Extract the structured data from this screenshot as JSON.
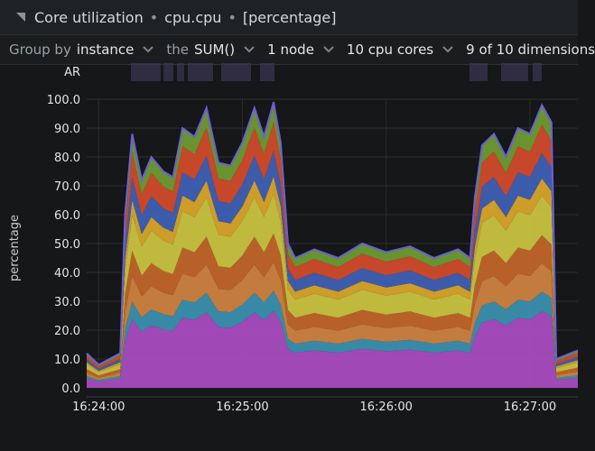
{
  "title": {
    "name": "Core utilization",
    "context": "cpu.cpu",
    "units": "[percentage]"
  },
  "toolbar": {
    "group_by_prefix": "Group by",
    "group_by_value": "instance",
    "agg_prefix": "the",
    "agg_value": "SUM()",
    "nodes": "1 node",
    "instances": "10 cpu cores",
    "dimensions": "9 of 10 dimensions"
  },
  "colors": {
    "background": "#151718",
    "grid": "#2a2e30",
    "layers": [
      "#a94bc0",
      "#3a8fae",
      "#ce8140",
      "#c0652a",
      "#c8c23f",
      "#d7a32a",
      "#3f5fb3",
      "#d04a2a",
      "#6b9a32"
    ],
    "top_edge": "#6a5fd8",
    "anomaly_bar": "#3a3650"
  },
  "chart_data": {
    "type": "area",
    "stacked": true,
    "ylabel": "percentage",
    "ylim": [
      0,
      100
    ],
    "yticks": [
      "100.0",
      "90.0",
      "80.0",
      "70.0",
      "60.0",
      "50.0",
      "40.0",
      "30.0",
      "20.0",
      "10.0",
      "0.0"
    ],
    "anomaly_row_label": "AR",
    "xlim": [
      "16:23:55",
      "16:27:20"
    ],
    "xticks": [
      "16:24:00",
      "16:25:00",
      "16:26:00",
      "16:27:00"
    ],
    "totals": [
      {
        "t": "16:23:55",
        "v": 12
      },
      {
        "t": "16:24:00",
        "v": 8
      },
      {
        "t": "16:24:09",
        "v": 12
      },
      {
        "t": "16:24:11",
        "v": 60
      },
      {
        "t": "16:24:14",
        "v": 88
      },
      {
        "t": "16:24:18",
        "v": 72
      },
      {
        "t": "16:24:22",
        "v": 80
      },
      {
        "t": "16:24:27",
        "v": 75
      },
      {
        "t": "16:24:31",
        "v": 73
      },
      {
        "t": "16:24:35",
        "v": 90
      },
      {
        "t": "16:24:40",
        "v": 87
      },
      {
        "t": "16:24:45",
        "v": 97
      },
      {
        "t": "16:24:50",
        "v": 78
      },
      {
        "t": "16:24:55",
        "v": 77
      },
      {
        "t": "16:25:00",
        "v": 85
      },
      {
        "t": "16:25:05",
        "v": 97
      },
      {
        "t": "16:25:09",
        "v": 87
      },
      {
        "t": "16:25:13",
        "v": 99
      },
      {
        "t": "16:25:16",
        "v": 85
      },
      {
        "t": "16:25:19",
        "v": 50
      },
      {
        "t": "16:25:22",
        "v": 45
      },
      {
        "t": "16:25:30",
        "v": 48
      },
      {
        "t": "16:25:40",
        "v": 45
      },
      {
        "t": "16:25:50",
        "v": 50
      },
      {
        "t": "16:26:00",
        "v": 47
      },
      {
        "t": "16:26:10",
        "v": 49
      },
      {
        "t": "16:26:20",
        "v": 45
      },
      {
        "t": "16:26:30",
        "v": 48
      },
      {
        "t": "16:26:35",
        "v": 45
      },
      {
        "t": "16:26:37",
        "v": 66
      },
      {
        "t": "16:26:40",
        "v": 84
      },
      {
        "t": "16:26:45",
        "v": 88
      },
      {
        "t": "16:26:50",
        "v": 80
      },
      {
        "t": "16:26:55",
        "v": 90
      },
      {
        "t": "16:27:00",
        "v": 88
      },
      {
        "t": "16:27:05",
        "v": 98
      },
      {
        "t": "16:27:09",
        "v": 92
      },
      {
        "t": "16:27:11",
        "v": 10
      },
      {
        "t": "16:27:20",
        "v": 13
      }
    ],
    "layer_shares": [
      0.27,
      0.07,
      0.1,
      0.1,
      0.14,
      0.06,
      0.09,
      0.1,
      0.07
    ]
  }
}
